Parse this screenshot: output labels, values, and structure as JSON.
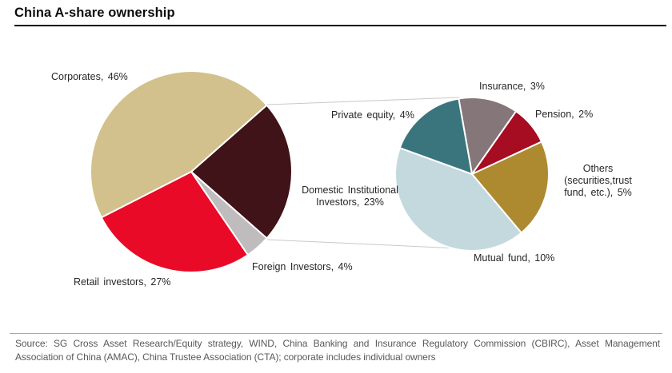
{
  "title": "China A-share ownership",
  "chart_data": [
    {
      "type": "pie",
      "name": "main-pie",
      "title": "China A-share ownership",
      "unit": "%",
      "direction": "clockwise",
      "start_angle_deg": 48.6,
      "slices": [
        {
          "label": "Domestic Institutional Investors",
          "value": 23,
          "color": "#3f1317"
        },
        {
          "label": "Foreign Investors",
          "value": 4,
          "color": "#c0bcbd"
        },
        {
          "label": "Retail investors",
          "value": 27,
          "color": "#e90a28"
        },
        {
          "label": "Corporates",
          "value": 46,
          "color": "#d2c18c"
        }
      ]
    },
    {
      "type": "pie",
      "name": "breakout-pie",
      "title": "Domestic Institutional Investors breakdown",
      "parent_slice": "Domestic Institutional Investors",
      "unit": "%",
      "direction": "clockwise",
      "start_angle_deg": -10,
      "slices": [
        {
          "label": "Insurance",
          "value": 3,
          "color": "#847679"
        },
        {
          "label": "Pension",
          "value": 2,
          "color": "#a60c22"
        },
        {
          "label": "Others (securities, trust fund, etc.)",
          "value": 5,
          "color": "#ad8a30"
        },
        {
          "label": "Mutual fund",
          "value": 10,
          "color": "#c3d9de"
        },
        {
          "label": "Private equity",
          "value": 4,
          "color": "#3a757e"
        }
      ]
    }
  ],
  "labels": {
    "corporates": "Corporates, 46%",
    "retail": "Retail investors, 27%",
    "foreign": "Foreign Investors, 4%",
    "domestic": "Domestic Institutional\nInvestors, 23%",
    "private_equity": "Private equity, 4%",
    "insurance": "Insurance, 3%",
    "pension": "Pension, 2%",
    "others": "Others\n(securities,trust\nfund, etc.), 5%",
    "mutual": "Mutual fund, 10%"
  },
  "source": {
    "line1": "Source: SG Cross Asset Research/Equity strategy, WIND, China Banking and Insurance Regulatory Commission (CBIRC), Asset Management",
    "line2": "Association of China (AMAC), China Trustee Association (CTA); corporate includes individual owners"
  }
}
